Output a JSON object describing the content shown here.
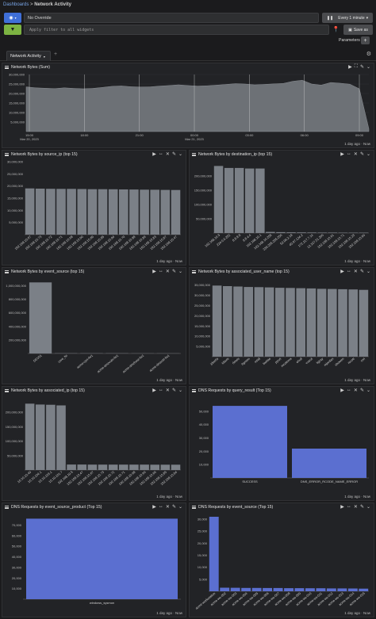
{
  "breadcrumb": {
    "root": "Dashboards",
    "separator": ">",
    "current": "Network Activity"
  },
  "toolbar": {
    "override_label": "No Override",
    "refresh_label": "Every 1 minute",
    "filter_placeholder": "Apply filter to all widgets",
    "save_as_label": "Save as",
    "parameters_label": "Parameters"
  },
  "tabs": [
    {
      "label": "Network Activity"
    }
  ],
  "colors": {
    "bar_gray": "#7b8087",
    "bar_blue": "#5b6fd0",
    "area_gray": "#6d7176"
  },
  "panels": {
    "p1": {
      "title": "Network Bytes (Sum)",
      "footer": "1 day ago · Now"
    },
    "p2": {
      "title": "Network Bytes by source_ip (top 15)",
      "footer": "1 day ago · Now"
    },
    "p3": {
      "title": "Network Bytes by destination_ip (top 15)",
      "footer": "1 day ago · Now"
    },
    "p4": {
      "title": "Network Bytes by event_source (top 15)",
      "footer": "1 day ago · Now"
    },
    "p5": {
      "title": "Network Bytes by associated_user_name (top 15)",
      "footer": "1 day ago · Now"
    },
    "p6": {
      "title": "Network Bytes by associated_ip (top 15)",
      "footer": "1 day ago · Now"
    },
    "p7": {
      "title": "DNS Requests by query_result (Top 15)",
      "footer": "1 day ago · Now"
    },
    "p8": {
      "title": "DNS Requests by event_source_product (Top 15)",
      "footer": "1 day ago · Now"
    },
    "p9": {
      "title": "DNS Requests by event_source (Top 15)",
      "footer": "1 day ago · Now"
    }
  },
  "chart_data": [
    {
      "type": "area",
      "title": "Network Bytes (Sum)",
      "x_ticks": [
        "15:00\nMar 20, 2023",
        "18:00",
        "21:00",
        "00:00\nMar 21, 2023",
        "03:00",
        "06:00",
        "09:00"
      ],
      "y_ticks": [
        "5,000,000",
        "10,000,000",
        "15,000,000",
        "20,000,000",
        "25,000,000",
        "30,000,000"
      ],
      "ylim": [
        0,
        30000000
      ],
      "values": [
        23500000,
        23000000,
        22800000,
        22600000,
        23000000,
        22700000,
        22500000,
        22700000,
        23200000,
        23800000,
        24000000,
        23600000,
        23400000,
        23500000,
        23900000,
        24200000,
        24600000,
        24200000,
        23900000,
        24100000,
        24400000,
        24800000,
        25200000,
        25000000,
        24600000,
        24800000,
        25100000,
        25300000,
        26400000,
        27000000,
        25000000,
        24400000,
        25800000,
        25400000,
        24900000,
        22500000,
        1500000
      ]
    },
    {
      "type": "bar",
      "title": "Network Bytes by source_ip (top 15)",
      "categories": [
        "192.168.10.67",
        "192.168.10.73",
        "192.168.10.72",
        "192.168.10.71",
        "192.168.10.68",
        "192.168.10.90",
        "192.168.10.69",
        "192.168.10.85",
        "192.168.10.84",
        "192.168.10.70",
        "192.168.10.88",
        "192.168.10.89",
        "192.168.10.83",
        "192.168.10.87",
        "192.168.10.47"
      ],
      "values": [
        19000000,
        18900000,
        18850000,
        18800000,
        18800000,
        18750000,
        18700000,
        18700000,
        18650000,
        18600000,
        18550000,
        18500000,
        18450000,
        18400000,
        18350000
      ],
      "y_ticks": [
        "5,000,000",
        "10,000,000",
        "15,000,000",
        "20,000,000",
        "25,000,000",
        "30,000,000"
      ],
      "ylim": [
        0,
        30000000
      ]
    },
    {
      "type": "bar",
      "title": "Network Bytes by destination_ip (top 15)",
      "categories": [
        "192.168.10.5",
        "224.0.0.252",
        "8.8.8.8",
        "8.8.4.4",
        "192.168.10.1",
        "192.168.10.255",
        "239.255.255.250",
        "52.96.2.18",
        "40.97.124.2",
        "172.217.7.14",
        "13.107.21.200",
        "192.168.10.61",
        "192.168.10.71",
        "192.168.10.23",
        "192.168.10.90"
      ],
      "values": [
        235000000,
        228000000,
        228000000,
        226000000,
        226000000,
        4000000,
        3000000,
        2500000,
        2200000,
        2000000,
        1800000,
        1600000,
        1500000,
        1400000,
        1300000
      ],
      "y_ticks": [
        "50,000,000",
        "100,000,000",
        "150,000,000",
        "200,000,000"
      ],
      "ylim": [
        0,
        250000000
      ]
    },
    {
      "type": "bar",
      "title": "Network Bytes by event_source (top 15)",
      "categories": [
        "DEV01",
        "core_fw",
        "acme-cpn-fw1",
        "acme-dmzvuln-fw1",
        "acme-dmzhost-fw1",
        "acme-dmzctrl-fw1"
      ],
      "values": [
        1050000000,
        4000000,
        3500000,
        3000000,
        2500000,
        2000000
      ],
      "y_ticks": [
        "200,000,000",
        "400,000,000",
        "600,000,000",
        "800,000,000",
        "1,000,000,000"
      ],
      "ylim": [
        0,
        1100000000
      ]
    },
    {
      "type": "bar",
      "title": "Network Bytes by associated_user_name (top 15)",
      "categories": [
        "jdoe0s",
        "tdavis",
        "rlewis",
        "bgreen",
        "mhill",
        "bwhite",
        "ppuri",
        "mcolema",
        "ehull",
        "vuscit",
        "kgray",
        "mjordan",
        "sbowen",
        "rscott",
        "rori"
      ],
      "values": [
        34800000,
        34500000,
        34300000,
        34100000,
        34000000,
        33900000,
        33700000,
        33600000,
        33500000,
        33400000,
        33200000,
        33100000,
        33000000,
        32900000,
        32700000
      ],
      "y_ticks": [
        "5,000,000",
        "10,000,000",
        "15,000,000",
        "20,000,000",
        "25,000,000",
        "30,000,000",
        "35,000,000"
      ],
      "ylim": [
        0,
        38000000
      ]
    },
    {
      "type": "bar",
      "title": "Network Bytes by associated_ip (top 15)",
      "categories": [
        "10.10.10.40",
        "10.10.104.1",
        "10.10.103.1",
        "10.10.101.7",
        "192.168.10.5",
        "192.168.10.47",
        "192.168.10.67",
        "192.168.10.73",
        "192.168.10.72",
        "192.168.10.71",
        "192.168.10.68",
        "192.168.10.90",
        "192.168.10.69",
        "192.168.10.85",
        "192.168.10.84"
      ],
      "values": [
        230000000,
        227000000,
        226000000,
        224000000,
        19000000,
        18900000,
        18800000,
        18800000,
        18700000,
        18700000,
        18600000,
        18600000,
        18500000,
        18500000,
        18400000
      ],
      "y_ticks": [
        "50,000,000",
        "100,000,000",
        "150,000,000",
        "200,000,000"
      ],
      "ylim": [
        0,
        250000000
      ]
    },
    {
      "type": "bar",
      "title": "DNS Requests by query_result (Top 15)",
      "categories": [
        "SUCCESS",
        "DNS_ERROR_RCODE_NAME_ERROR"
      ],
      "values": [
        54000,
        22000
      ],
      "y_ticks": [
        "10,000",
        "20,000",
        "30,000",
        "40,000",
        "50,000"
      ],
      "ylim": [
        0,
        60000
      ]
    },
    {
      "type": "bar",
      "title": "DNS Requests by event_source_product (Top 15)",
      "categories": [
        "windows_sysmon"
      ],
      "values": [
        76000
      ],
      "y_ticks": [
        "10,000",
        "20,000",
        "30,000",
        "40,000",
        "50,000",
        "60,000",
        "70,000"
      ],
      "ylim": [
        0,
        80000
      ]
    },
    {
      "type": "bar",
      "title": "DNS Requests by event_source (Top 15)",
      "categories": [
        "acme-workstation",
        "acme-ws-002",
        "acme-ws-003",
        "acme-ws-004",
        "acme-ws-005",
        "acme-ws-006",
        "acme-ws-007",
        "acme-ws-008",
        "acme-ws-009",
        "acme-ws-010",
        "acme-ws-011",
        "acme-ws-012",
        "acme-ws-013",
        "acme-ws-014",
        "acme-ws-015"
      ],
      "values": [
        31000,
        1500,
        1450,
        1400,
        1400,
        1350,
        1350,
        1300,
        1300,
        1250,
        1250,
        1200,
        1200,
        1150,
        1100
      ],
      "y_ticks": [
        "5,000",
        "10,000",
        "15,000",
        "20,000",
        "25,000",
        "30,000"
      ],
      "ylim": [
        0,
        32000
      ]
    }
  ]
}
